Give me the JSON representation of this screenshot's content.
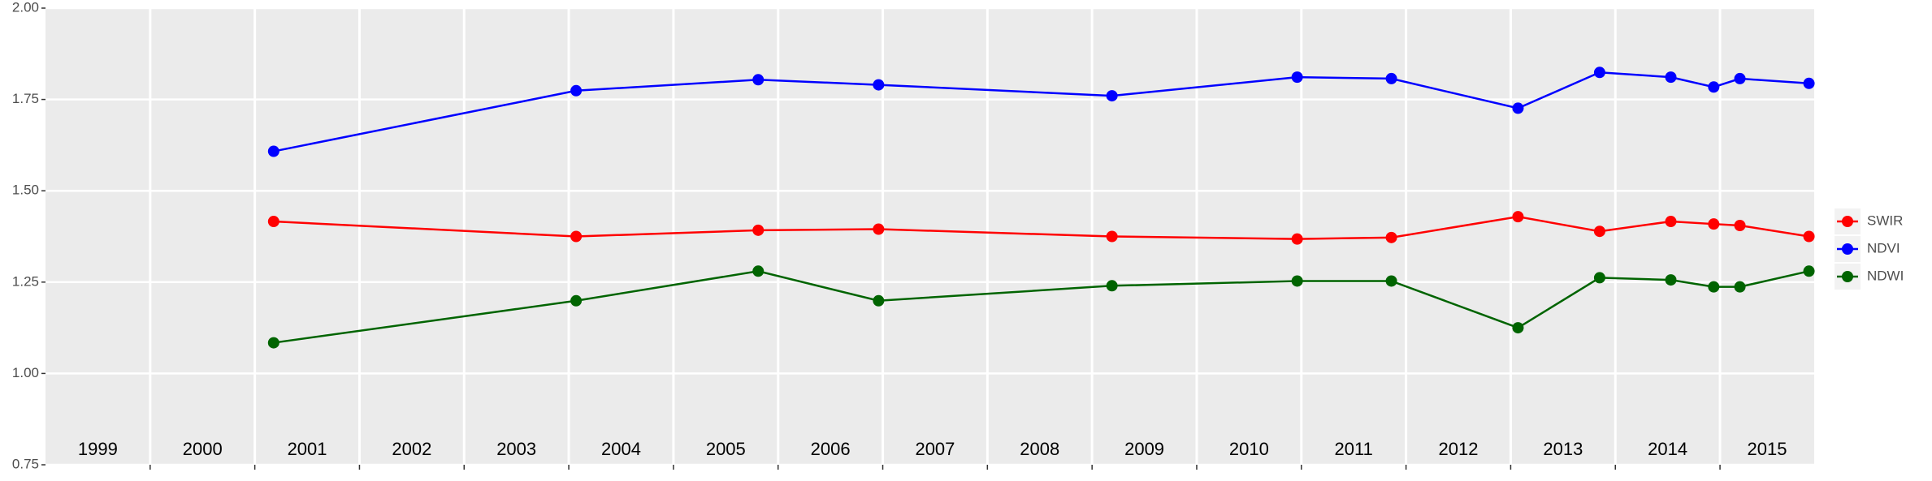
{
  "chart_data": {
    "type": "line",
    "x": [
      2001.18,
      2004.07,
      2005.81,
      2006.96,
      2009.19,
      2010.96,
      2011.86,
      2013.07,
      2013.85,
      2014.53,
      2014.94,
      2015.19,
      2015.85
    ],
    "series": [
      {
        "name": "SWIR",
        "color": "#ff0000",
        "values": [
          1.416,
          1.375,
          1.392,
          1.395,
          1.375,
          1.368,
          1.372,
          1.429,
          1.389,
          1.416,
          1.409,
          1.405,
          1.375
        ]
      },
      {
        "name": "NDVI",
        "color": "#0000ff",
        "values": [
          1.608,
          1.774,
          1.804,
          1.79,
          1.76,
          1.811,
          1.807,
          1.726,
          1.824,
          1.811,
          1.784,
          1.807,
          1.794
        ]
      },
      {
        "name": "NDWI",
        "color": "#006400",
        "values": [
          1.084,
          1.199,
          1.28,
          1.199,
          1.24,
          1.253,
          1.253,
          1.125,
          1.262,
          1.256,
          1.237,
          1.237,
          1.28
        ]
      }
    ],
    "xlim": [
      1999,
      2015.9
    ],
    "xticks": [
      2000,
      2001,
      2002,
      2003,
      2004,
      2005,
      2006,
      2007,
      2008,
      2009,
      2010,
      2011,
      2012,
      2013,
      2014,
      2015
    ],
    "year_labels": [
      {
        "value": 1999.5,
        "label": "1999"
      },
      {
        "value": 2000.5,
        "label": "2000"
      },
      {
        "value": 2001.5,
        "label": "2001"
      },
      {
        "value": 2002.5,
        "label": "2002"
      },
      {
        "value": 2003.5,
        "label": "2003"
      },
      {
        "value": 2004.5,
        "label": "2004"
      },
      {
        "value": 2005.5,
        "label": "2005"
      },
      {
        "value": 2006.5,
        "label": "2006"
      },
      {
        "value": 2007.5,
        "label": "2007"
      },
      {
        "value": 2008.5,
        "label": "2008"
      },
      {
        "value": 2009.5,
        "label": "2009"
      },
      {
        "value": 2010.5,
        "label": "2010"
      },
      {
        "value": 2011.5,
        "label": "2011"
      },
      {
        "value": 2012.5,
        "label": "2012"
      },
      {
        "value": 2013.5,
        "label": "2013"
      },
      {
        "value": 2014.5,
        "label": "2014"
      },
      {
        "value": 2015.45,
        "label": "2015"
      }
    ],
    "ylim": [
      0.75,
      2.0
    ],
    "yticks": [
      {
        "value": 0.75,
        "label": "0.75"
      },
      {
        "value": 1.0,
        "label": "1.00"
      },
      {
        "value": 1.25,
        "label": "1.25"
      },
      {
        "value": 1.5,
        "label": "1.50"
      },
      {
        "value": 1.75,
        "label": "1.75"
      },
      {
        "value": 2.0,
        "label": "2.00"
      }
    ],
    "grid": true,
    "legend": "right"
  }
}
